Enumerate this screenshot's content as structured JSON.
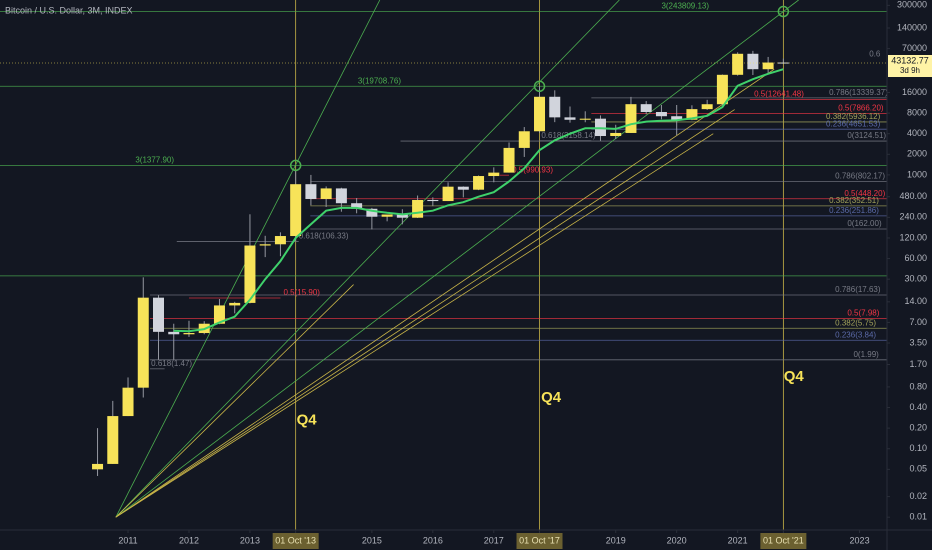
{
  "chart_data": {
    "type": "candlestick",
    "title": "Bitcoin / U.S. Dollar, 3M, INDEX",
    "log_scale": true,
    "xlim": [
      2008.9,
      2023.45
    ],
    "ylim": [
      0.0065,
      359000
    ],
    "xticks": [
      2011,
      2012,
      2013,
      {
        "value": 2013.75,
        "label": "01 Oct '13"
      },
      2015,
      2016,
      2017,
      {
        "value": 2017.75,
        "label": "01 Oct '17"
      },
      2019,
      2020,
      2021,
      {
        "value": 2021.75,
        "label": "01 Oct '21"
      },
      2023
    ],
    "yticks": [
      300000,
      140000,
      70000,
      16000,
      8000,
      4000,
      2000,
      1000,
      {
        "value": 480,
        "label": "480.00"
      },
      {
        "value": 240,
        "label": "240.00"
      },
      {
        "value": 120,
        "label": "120.00"
      },
      {
        "value": 60,
        "label": "60.00"
      },
      {
        "value": 30,
        "label": "30.00"
      },
      {
        "value": 14,
        "label": "14.00"
      },
      {
        "value": 7,
        "label": "7.00"
      },
      {
        "value": 3.5,
        "label": "3.50"
      },
      {
        "value": 1.7,
        "label": "1.70"
      },
      {
        "value": 0.8,
        "label": "0.80"
      },
      {
        "value": 0.4,
        "label": "0.40"
      },
      {
        "value": 0.2,
        "label": "0.20"
      },
      {
        "value": 0.1,
        "label": "0.10"
      },
      0.05,
      0.02,
      0.01
    ],
    "up_color": "#f7e359",
    "down_color": "#d1d4dc",
    "x": [
      2010.5,
      2010.75,
      2011.0,
      2011.25,
      2011.5,
      2011.75,
      2012.0,
      2012.25,
      2012.5,
      2012.75,
      2013.0,
      2013.25,
      2013.5,
      2013.75,
      2014.0,
      2014.25,
      2014.5,
      2014.75,
      2015.0,
      2015.25,
      2015.5,
      2015.75,
      2016.0,
      2016.25,
      2016.5,
      2016.75,
      2017.0,
      2017.25,
      2017.5,
      2017.75,
      2018.0,
      2018.25,
      2018.5,
      2018.75,
      2019.0,
      2019.25,
      2019.5,
      2019.75,
      2020.0,
      2020.25,
      2020.5,
      2020.75,
      2021.0,
      2021.25,
      2021.5,
      2021.75
    ],
    "open": [
      0.05,
      0.06,
      0.3,
      0.78,
      16.1,
      5.1,
      4.7,
      4.9,
      6.7,
      12.4,
      13.5,
      93,
      97,
      128,
      732,
      445,
      635,
      386,
      320,
      245,
      264,
      237,
      430,
      415,
      673,
      608,
      963,
      1080,
      2480,
      4340,
      13850,
      6930,
      6390,
      6630,
      3700,
      4100,
      10800,
      8300,
      7200,
      6400,
      9140,
      10780,
      28990,
      58800,
      35000,
      43800
    ],
    "high": [
      0.2,
      0.5,
      1.1,
      31.9,
      17.5,
      6.7,
      7.4,
      7.3,
      15.4,
      14.0,
      266,
      129,
      145,
      1163,
      1000,
      680,
      650,
      460,
      330,
      260,
      315,
      500,
      470,
      780,
      680,
      980,
      1290,
      2980,
      5000,
      19800,
      17200,
      9990,
      8500,
      7400,
      5400,
      13800,
      12000,
      10500,
      10500,
      10400,
      12500,
      29300,
      61800,
      64900,
      52900,
      50000
    ],
    "low": [
      0.04,
      0.06,
      0.3,
      0.56,
      2.0,
      2.0,
      4.3,
      4.7,
      6.6,
      9.5,
      13.3,
      63,
      65,
      109,
      360,
      340,
      290,
      275,
      160,
      210,
      190,
      235,
      350,
      415,
      470,
      600,
      780,
      1080,
      1830,
      4100,
      5900,
      5800,
      5880,
      3150,
      3350,
      4100,
      7700,
      6500,
      3800,
      6300,
      8900,
      10400,
      28200,
      28800,
      29300,
      42000
    ],
    "close": [
      0.06,
      0.3,
      0.78,
      16.1,
      5.1,
      4.7,
      4.9,
      6.7,
      12.4,
      13.5,
      93,
      97,
      128,
      732,
      445,
      635,
      386,
      320,
      245,
      264,
      237,
      430,
      415,
      673,
      608,
      963,
      1080,
      2480,
      4340,
      13850,
      6930,
      6390,
      6630,
      3700,
      4100,
      10800,
      8300,
      7200,
      6400,
      9140,
      10780,
      28990,
      58800,
      35000,
      43800,
      43132.77
    ],
    "series": [
      {
        "color": "#3fd16b",
        "values": [
          null,
          null,
          null,
          null,
          null,
          5.3,
          5.2,
          5.6,
          7.0,
          8.5,
          15,
          30,
          55,
          120,
          190,
          300,
          330,
          330,
          300,
          280,
          265,
          280,
          300,
          360,
          400,
          480,
          560,
          800,
          1250,
          2300,
          3200,
          4000,
          4800,
          4800,
          4700,
          5500,
          6000,
          6200,
          6300,
          6700,
          7300,
          9800,
          20000,
          25000,
          30000,
          35000
        ]
      }
    ],
    "last_price": 43132.77,
    "countdown": "3d 9h",
    "levels": [
      {
        "label": "3(243809.13)",
        "value": 243809.13,
        "color": "#4caf50",
        "from": 2008.9,
        "label_x": 2019.75
      },
      {
        "label": "3(19708.76)",
        "value": 19708.76,
        "color": "#4caf50",
        "from": 2008.9,
        "label_x": 2014.77
      },
      {
        "label": "3(1377.90)",
        "value": 1377.9,
        "color": "#4caf50",
        "from": 2008.9,
        "label_x": 2011.12
      },
      {
        "value": 33.5,
        "color": "#4caf50",
        "from": 2008.9
      },
      {
        "label": "0.786(13339.37)",
        "value": 13339.37,
        "color": "#787b86",
        "from": 2018.6,
        "label_x": 2022.5
      },
      {
        "label": "0.5(12641.48)",
        "value": 12641.48,
        "color": "#f23645",
        "from": 2021.2,
        "label_x": 2021.27
      },
      {
        "label": "0.5(7866.20)",
        "value": 7866.2,
        "color": "#f23645",
        "from": 2018.6,
        "label_x": 2022.65
      },
      {
        "label": "0.382(5936.12)",
        "value": 5936.12,
        "color": "#a3a35a",
        "from": 2018.6,
        "label_x": 2022.45
      },
      {
        "label": "0.236(4651.53)",
        "value": 4651.53,
        "color": "#5b6aa8",
        "from": 2018.6,
        "label_x": 2022.45
      },
      {
        "label": "0(3124.51)",
        "value": 3124.51,
        "color": "#787b86",
        "from": 2015.47,
        "label_x": 2022.8
      },
      {
        "label": "0.618(3158.14)",
        "value": 3158.14,
        "color": "#787b86",
        "from": 2017.75,
        "to": 2018.6,
        "label_x": 2017.78
      },
      {
        "label": "0.786(802.17)",
        "value": 802.17,
        "color": "#787b86",
        "from": 2013.99,
        "label_x": 2022.6
      },
      {
        "label": "0.5(448.20)",
        "value": 448.2,
        "color": "#f23645",
        "from": 2013.99,
        "label_x": 2022.75
      },
      {
        "label": "0.382(352.51)",
        "value": 352.51,
        "color": "#a3a35a",
        "from": 2013.99,
        "label_x": 2022.5
      },
      {
        "label": "0.236(251.86)",
        "value": 251.86,
        "color": "#5b6aa8",
        "from": 2013.99,
        "label_x": 2022.5
      },
      {
        "label": "0(162.00)",
        "value": 162,
        "color": "#787b86",
        "from": 2013.99,
        "label_x": 2022.8
      },
      {
        "label": "0.618(106.33)",
        "value": 106.33,
        "color": "#787b86",
        "from": 2011.8,
        "to": 2013.8,
        "label_x": 2013.8
      },
      {
        "label": "0.5(990.93)",
        "value": 990.93,
        "color": "#f23645",
        "from": 2017.1,
        "to": 2017.25,
        "label_x": 2017.3
      },
      {
        "label": "0.5(15.90)",
        "value": 15.9,
        "color": "#f23645",
        "from": 2012.0,
        "to": 2013.5,
        "label_x": 2013.55
      },
      {
        "label": "0.786(17.63)",
        "value": 17.63,
        "color": "#787b86",
        "from": 2011.36,
        "label_x": 2022.6
      },
      {
        "label": "0.5(7.98)",
        "value": 7.98,
        "color": "#f23645",
        "from": 2011.36,
        "label_x": 2022.8
      },
      {
        "label": "0.382(5.75)",
        "value": 5.75,
        "color": "#a3a35a",
        "from": 2011.36,
        "label_x": 2022.6
      },
      {
        "label": "0.236(3.84)",
        "value": 3.84,
        "color": "#5b6aa8",
        "from": 2011.36,
        "label_x": 2022.6
      },
      {
        "label": "0(1.99)",
        "value": 1.99,
        "color": "#787b86",
        "from": 2011.36,
        "label_x": 2022.9
      },
      {
        "label": "0.618(1.47)",
        "value": 1.47,
        "color": "#787b86",
        "from": 2011.36,
        "to": 2011.6,
        "label_x": 2011.38
      }
    ],
    "fan_lines": [
      {
        "color": "#4caf50",
        "from": [
          2010.8,
          0.01
        ],
        "to": [
          2015.13,
          359000
        ]
      },
      {
        "color": "#4caf50",
        "from": [
          2010.8,
          0.01
        ],
        "to": [
          2019.06,
          359000
        ]
      },
      {
        "color": "#4caf50",
        "from": [
          2010.8,
          0.01
        ],
        "to": [
          2022.0,
          359000
        ]
      },
      {
        "color": "#c9b548",
        "from": [
          2010.8,
          0.01
        ],
        "to": [
          2020.6,
          4000
        ]
      },
      {
        "color": "#c9b548",
        "from": [
          2010.8,
          0.01
        ],
        "to": [
          2020.95,
          9000
        ]
      },
      {
        "color": "#c9b548",
        "from": [
          2010.8,
          0.01
        ],
        "to": [
          2021.6,
          35000
        ]
      },
      {
        "color": "#c9b548",
        "from": [
          2010.8,
          0.01
        ],
        "to": [
          2014.7,
          25
        ]
      }
    ],
    "markers": [
      {
        "x": 2013.75,
        "y": 1377.9
      },
      {
        "x": 2017.75,
        "y": 19708.76
      },
      {
        "x": 2021.75,
        "y": 243809.13
      }
    ],
    "cycle_lines": [
      2013.75,
      2017.75,
      2021.75
    ],
    "annotations": [
      {
        "text": "Q4",
        "x": 2013.93,
        "y": 0.26
      },
      {
        "text": "Q4",
        "x": 2017.94,
        "y": 0.55
      },
      {
        "text": "Q4",
        "x": 2021.92,
        "y": 1.11
      },
      {
        "text": "0.6",
        "x": 2023.25,
        "y": 58000
      }
    ]
  }
}
